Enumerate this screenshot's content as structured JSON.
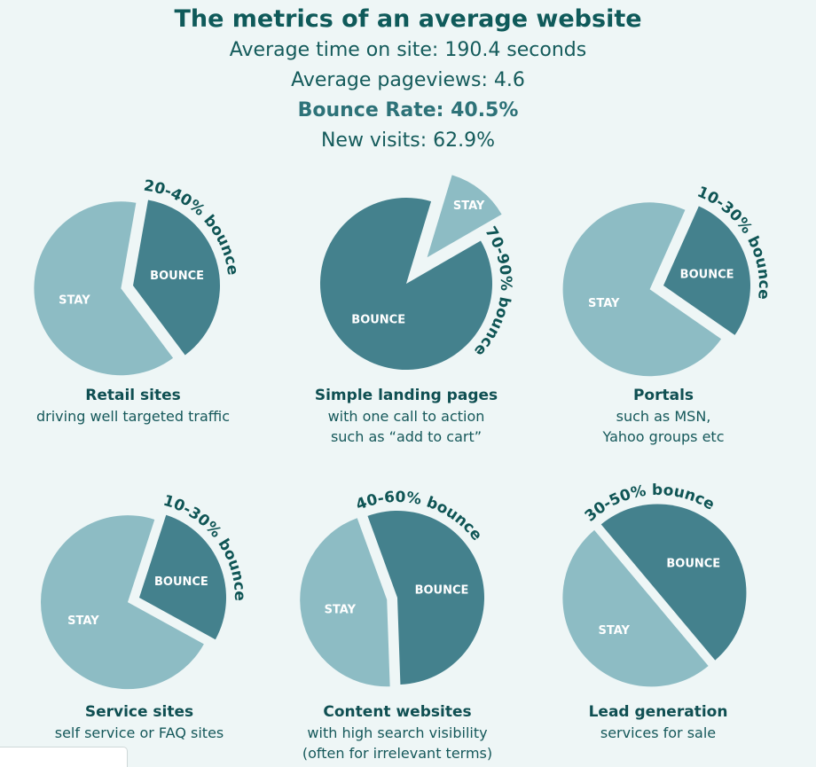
{
  "header": {
    "title": "The metrics of an average website",
    "stats": [
      "Average time on site: 190.4 seconds",
      "Average pageviews: 4.6",
      "Bounce Rate: 40.5%",
      "New visits: 62.9%"
    ]
  },
  "colors": {
    "stay": "#8dbcc4",
    "bounce": "#44818d",
    "background": "#eef6f6",
    "text": "#0f5555"
  },
  "chart_data": [
    {
      "type": "pie",
      "title": "Retail sites",
      "subtitle": [
        "driving well targeted traffic"
      ],
      "range_label": "20-40% bounce",
      "categories": [
        "STAY",
        "BOUNCE"
      ],
      "values": [
        63,
        37
      ]
    },
    {
      "type": "pie",
      "title": "Simple landing pages",
      "subtitle": [
        "with one call to action",
        "such as “add to cart”"
      ],
      "range_label": "70-90% bounce",
      "categories": [
        "STAY",
        "BOUNCE"
      ],
      "values": [
        12,
        88
      ]
    },
    {
      "type": "pie",
      "title": "Portals",
      "subtitle": [
        "such as MSN,",
        "Yahoo groups etc"
      ],
      "range_label": "10-30% bounce",
      "categories": [
        "STAY",
        "BOUNCE"
      ],
      "values": [
        72,
        28
      ]
    },
    {
      "type": "pie",
      "title": "Service sites",
      "subtitle": [
        "self service or FAQ sites"
      ],
      "range_label": "10-30% bounce",
      "categories": [
        "STAY",
        "BOUNCE"
      ],
      "values": [
        72,
        28
      ]
    },
    {
      "type": "pie",
      "title": "Content websites",
      "subtitle": [
        "with high search visibility",
        "(often for irrelevant terms)"
      ],
      "range_label": "40-60% bounce",
      "categories": [
        "STAY",
        "BOUNCE"
      ],
      "values": [
        45,
        55
      ]
    },
    {
      "type": "pie",
      "title": "Lead generation",
      "subtitle": [
        "services for sale"
      ],
      "range_label": "30-50% bounce",
      "categories": [
        "STAY",
        "BOUNCE"
      ],
      "values": [
        50,
        50
      ]
    }
  ]
}
